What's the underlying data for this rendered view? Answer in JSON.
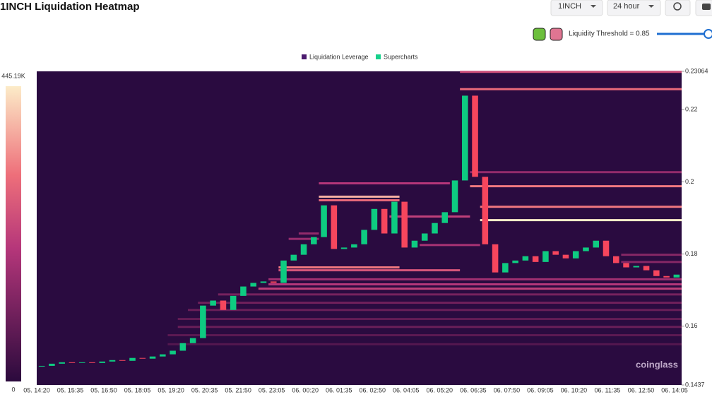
{
  "header": {
    "title": "1INCH Liquidation Heatmap",
    "symbol": "1INCH",
    "range": "24 hour",
    "threshold": "Liquidity Threshold = 0.85"
  },
  "chart_data": {
    "type": "heatmap",
    "legend": [
      "Liquidation Leverage",
      "Supercharts"
    ],
    "watermark": "coinglass",
    "categories": [
      "05. 14:20",
      "05. 15:35",
      "05. 16:50",
      "05. 18:05",
      "05. 19:20",
      "05. 20:35",
      "05. 21:50",
      "05. 23:05",
      "06. 00:20",
      "06. 01:35",
      "06. 02:50",
      "06. 04:05",
      "06. 05:20",
      "06. 06:35",
      "06. 07:50",
      "06. 09:05",
      "06. 10:20",
      "06. 11:35",
      "06. 12:50",
      "06. 14:05"
    ],
    "ylim": [
      0.1437,
      0.23064
    ],
    "yticks": [
      0.23064,
      0.22,
      0.2,
      0.18,
      0.16,
      0.1437
    ],
    "colorbar": {
      "lim": [
        0,
        445.19
      ],
      "ticks": [
        {
          "value": 445.19,
          "label": "445.19K"
        },
        0
      ]
    },
    "up_color": "#0ecb81",
    "down_color": "#f6465d",
    "candles": {
      "close": [
        0.149,
        0.1496,
        0.15,
        0.1498,
        0.15,
        0.1498,
        0.1502,
        0.1506,
        0.1504,
        0.1512,
        0.151,
        0.1516,
        0.1522,
        0.1532,
        0.1553,
        0.1567,
        0.1657,
        0.1671,
        0.1645,
        0.1684,
        0.171,
        0.172,
        0.1724,
        0.172,
        0.1782,
        0.1798,
        0.1827,
        0.1847,
        0.1935,
        0.1814,
        0.1818,
        0.1827,
        0.1867,
        0.1925,
        0.1857,
        0.1945,
        0.1818,
        0.1837,
        0.1857,
        0.1886,
        0.1916,
        0.2004,
        0.2239,
        0.2014,
        0.1827,
        0.1749,
        0.1775,
        0.1782,
        0.1794,
        0.1778,
        0.1808,
        0.1798,
        0.1788,
        0.1808,
        0.1818,
        0.1837,
        0.1794,
        0.1775,
        0.1763,
        0.1767,
        0.1755,
        0.1739,
        0.1735,
        0.1743
      ]
    },
    "levels": {
      "price": [
        0.2305,
        0.2257,
        0.2027,
        0.1988,
        0.1931,
        0.1894,
        0.1996,
        0.1959,
        0.1949,
        0.1904,
        0.1825,
        0.1763,
        0.1755,
        0.173,
        0.1716,
        0.1704,
        0.1798,
        0.1778,
        0.1688,
        0.1665,
        0.1645,
        0.162,
        0.1598,
        0.1575,
        0.155,
        0.1842,
        0.1857
      ],
      "start_candle": [
        42,
        42,
        43,
        43,
        44,
        44,
        28,
        28,
        28,
        35,
        38,
        24,
        24,
        23,
        23,
        22,
        58,
        58,
        18,
        16,
        15,
        14,
        14,
        13,
        13,
        25,
        26
      ],
      "end_candle": [
        64,
        64,
        64,
        64,
        64,
        64,
        41,
        36,
        36,
        43,
        44,
        36,
        42,
        64,
        64,
        64,
        64,
        64,
        64,
        64,
        64,
        64,
        64,
        64,
        64,
        28,
        28
      ],
      "intensity": [
        250,
        300,
        150,
        320,
        320,
        445,
        200,
        380,
        300,
        220,
        180,
        320,
        260,
        170,
        200,
        220,
        130,
        130,
        110,
        100,
        90,
        80,
        90,
        70,
        60,
        160,
        150
      ]
    }
  }
}
